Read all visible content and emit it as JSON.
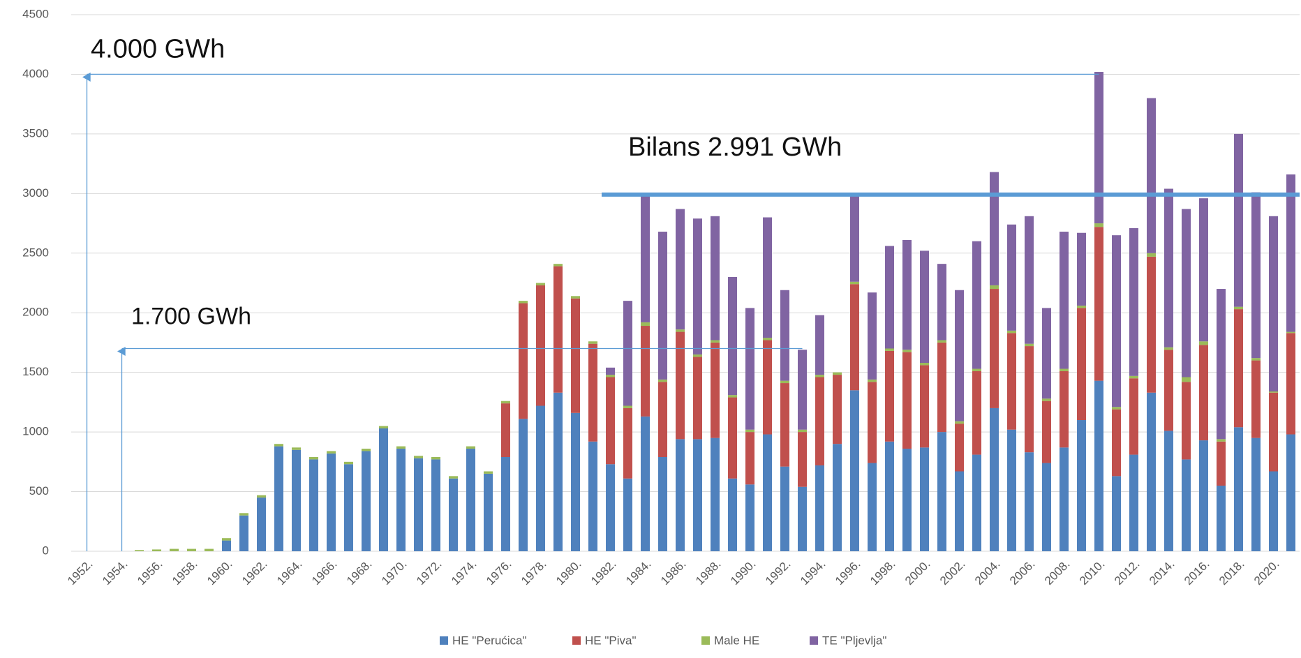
{
  "chart_data": {
    "type": "stacked_bar",
    "categories": [
      "1952.",
      null,
      "1954.",
      null,
      "1956.",
      null,
      "1958.",
      null,
      "1960.",
      null,
      "1962.",
      null,
      "1964.",
      null,
      "1966.",
      null,
      "1968.",
      null,
      "1970.",
      null,
      "1972.",
      null,
      "1974.",
      null,
      "1976.",
      null,
      "1978.",
      null,
      "1980.",
      null,
      "1982.",
      null,
      "1984.",
      null,
      "1986.",
      null,
      "1988.",
      null,
      "1990.",
      null,
      "1992.",
      null,
      "1994.",
      null,
      "1996.",
      null,
      "1998.",
      null,
      "2000.",
      null,
      "2002.",
      null,
      "2004.",
      null,
      "2006.",
      null,
      "2008.",
      null,
      "2010.",
      null,
      "2012.",
      null,
      "2014.",
      null,
      "2016.",
      null,
      "2018.",
      null,
      "2020.",
      null
    ],
    "series": [
      {
        "name": "HE \"Perućica\"",
        "color": "#4f81bd",
        "values": [
          0,
          0,
          0,
          0,
          0,
          0,
          0,
          0,
          90,
          300,
          450,
          880,
          850,
          770,
          820,
          730,
          840,
          1030,
          860,
          780,
          770,
          610,
          860,
          650,
          790,
          1110,
          1220,
          1330,
          1160,
          920,
          730,
          610,
          1130,
          790,
          940,
          940,
          950,
          610,
          560,
          980,
          710,
          540,
          720,
          900,
          1350,
          740,
          920,
          860,
          870,
          1000,
          670,
          810,
          1200,
          1020,
          830,
          740,
          870,
          1100,
          1430,
          630,
          810,
          1330,
          1010,
          770,
          930,
          550,
          1040,
          950,
          670,
          980
        ]
      },
      {
        "name": "HE \"Piva\"",
        "color": "#c0504d",
        "values": [
          0,
          0,
          0,
          0,
          0,
          0,
          0,
          0,
          0,
          0,
          0,
          0,
          0,
          0,
          0,
          0,
          0,
          0,
          0,
          0,
          0,
          0,
          0,
          0,
          450,
          970,
          1010,
          1060,
          960,
          820,
          730,
          590,
          760,
          630,
          900,
          690,
          800,
          680,
          440,
          790,
          700,
          460,
          740,
          580,
          890,
          680,
          760,
          810,
          690,
          750,
          400,
          700,
          1000,
          810,
          890,
          520,
          640,
          940,
          1290,
          560,
          640,
          1140,
          680,
          650,
          800,
          370,
          990,
          650,
          660,
          850
        ]
      },
      {
        "name": "Male HE",
        "color": "#9bbb59",
        "values": [
          0,
          0,
          0,
          10,
          15,
          20,
          20,
          20,
          20,
          20,
          20,
          20,
          20,
          20,
          20,
          20,
          20,
          20,
          20,
          20,
          20,
          20,
          20,
          20,
          20,
          20,
          20,
          20,
          20,
          20,
          20,
          20,
          30,
          20,
          20,
          20,
          20,
          20,
          20,
          20,
          20,
          20,
          20,
          20,
          20,
          20,
          20,
          20,
          20,
          20,
          20,
          20,
          30,
          20,
          20,
          20,
          20,
          20,
          30,
          20,
          20,
          30,
          20,
          40,
          30,
          20,
          20,
          20,
          10,
          10
        ]
      },
      {
        "name": "TE \"Pljevlja\"",
        "color": "#8064a2",
        "values": [
          0,
          0,
          0,
          0,
          0,
          0,
          0,
          0,
          0,
          0,
          0,
          0,
          0,
          0,
          0,
          0,
          0,
          0,
          0,
          0,
          0,
          0,
          0,
          0,
          0,
          0,
          0,
          0,
          0,
          0,
          60,
          880,
          1060,
          1240,
          1010,
          1140,
          1040,
          990,
          1020,
          1010,
          760,
          670,
          500,
          0,
          740,
          730,
          860,
          920,
          940,
          640,
          1100,
          1070,
          950,
          890,
          1070,
          760,
          1150,
          610,
          1270,
          1440,
          1240,
          1300,
          1330,
          1410,
          1200,
          1260,
          1450,
          1390,
          1470,
          1320
        ]
      }
    ],
    "ylim": [
      0,
      4500
    ],
    "yticks": [
      0,
      500,
      1000,
      1500,
      2000,
      2500,
      3000,
      3500,
      4000,
      4500
    ],
    "grid": true,
    "legend": "bottom",
    "annotations": [
      {
        "value": 4000,
        "label": "4.000 GWh"
      },
      {
        "value": 1700,
        "label": "1.700 GWh"
      },
      {
        "value": 2991,
        "label": "Bilans 2.991 GWh"
      }
    ]
  }
}
